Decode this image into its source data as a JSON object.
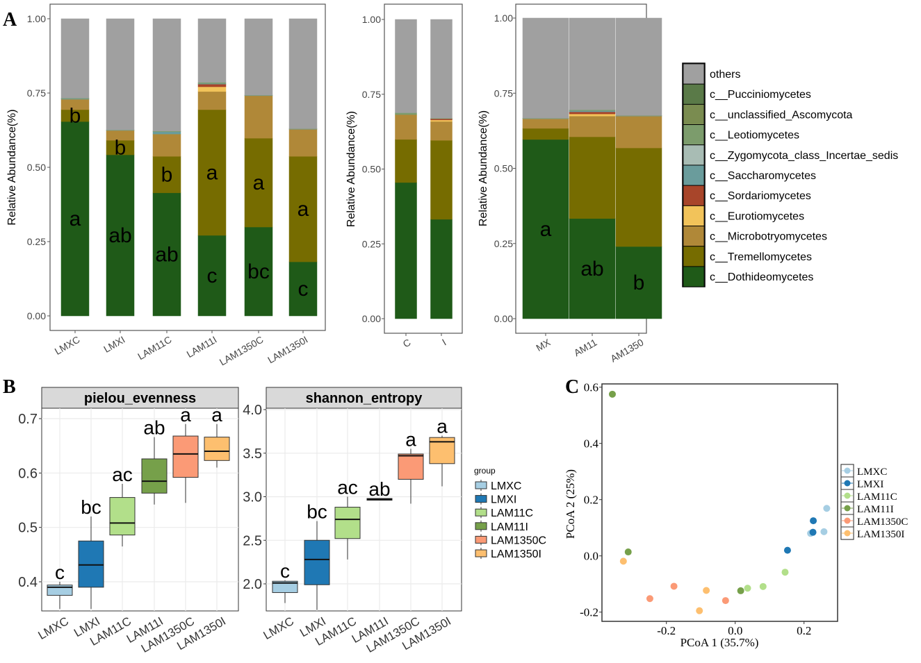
{
  "panel_labels": {
    "a": "A",
    "b": "B",
    "c": "C"
  },
  "colors": {
    "others": "#a0a0a0",
    "c__Pucciniomycetes": "#5a7a48",
    "c__unclassified_Ascomycota": "#7a8c50",
    "c__Leotiomycetes": "#7c9c6c",
    "c__Zygomycota_class_Incertae_sedis": "#a8bcb4",
    "c__Saccharomycetes": "#6a9c9c",
    "c__Sordariomycetes": "#a8452a",
    "c__Eurotiomycetes": "#f2c35a",
    "c__Microbotryomycetes": "#b08838",
    "c__Tremellomycetes": "#766c00",
    "c__Dothideomycetes": "#1f5a18",
    "LMXC": "#a6cee3",
    "LMXI": "#1f78b4",
    "LAM11C": "#b2df8a",
    "LAM11I": "#76a04a",
    "LAM1350C": "#fb9a76",
    "LAM1350I": "#fdbf6f"
  },
  "legend_a": [
    "others",
    "c__Pucciniomycetes",
    "c__unclassified_Ascomycota",
    "c__Leotiomycetes",
    "c__Zygomycota_class_Incertae_sedis",
    "c__Saccharomycetes",
    "c__Sordariomycetes",
    "c__Eurotiomycetes",
    "c__Microbotryomycetes",
    "c__Tremellomycetes",
    "c__Dothideomycetes"
  ],
  "chart_data": [
    {
      "type": "bar",
      "stacked": true,
      "ylabel": "Relative Abundance(%)",
      "ylim": [
        0,
        1
      ],
      "yticks": [
        "0.00",
        "0.25",
        "0.50",
        "0.75",
        "1.00"
      ],
      "categories": [
        "LMXC",
        "LMXI",
        "LAM11C",
        "LAM11I",
        "LAM1350C",
        "LAM1350I"
      ],
      "series": [
        {
          "name": "c__Dothideomycetes",
          "values": [
            0.654,
            0.542,
            0.414,
            0.271,
            0.299,
            0.182
          ]
        },
        {
          "name": "c__Tremellomycetes",
          "values": [
            0.04,
            0.049,
            0.123,
            0.423,
            0.299,
            0.355
          ]
        },
        {
          "name": "c__Microbotryomycetes",
          "values": [
            0.035,
            0.033,
            0.075,
            0.061,
            0.143,
            0.091
          ]
        },
        {
          "name": "c__Eurotiomycetes",
          "values": [
            0,
            0,
            0,
            0.016,
            0,
            0
          ]
        },
        {
          "name": "c__Sordariomycetes",
          "values": [
            0,
            0,
            0,
            0.009,
            0,
            0
          ]
        },
        {
          "name": "c__Saccharomycetes",
          "values": [
            0.002,
            0.001,
            0.008,
            0.002,
            0.001,
            0.001
          ]
        },
        {
          "name": "c__Leotiomycetes",
          "values": [
            0.002,
            0.001,
            0.002,
            0.004,
            0.001,
            0.001
          ]
        },
        {
          "name": "others",
          "values": [
            0.267,
            0.374,
            0.378,
            0.214,
            0.257,
            0.37
          ]
        }
      ],
      "letters": {
        "c__Dothideomycetes": [
          "a",
          "ab",
          "ab",
          "c",
          "bc",
          "c"
        ],
        "c__Tremellomycetes": [
          "b",
          "b",
          "b",
          "a",
          "a",
          "a"
        ]
      }
    },
    {
      "type": "bar",
      "stacked": true,
      "ylabel": "Relative Abundance(%)",
      "ylim": [
        0,
        1
      ],
      "yticks": [
        "0.00",
        "0.25",
        "0.50",
        "0.75",
        "1.00"
      ],
      "categories": [
        "C",
        "I"
      ],
      "series": [
        {
          "name": "c__Dothideomycetes",
          "values": [
            0.455,
            0.332
          ]
        },
        {
          "name": "c__Tremellomycetes",
          "values": [
            0.144,
            0.264
          ]
        },
        {
          "name": "c__Microbotryomycetes",
          "values": [
            0.083,
            0.063
          ]
        },
        {
          "name": "c__Eurotiomycetes",
          "values": [
            0,
            0.005
          ]
        },
        {
          "name": "c__Sordariomycetes",
          "values": [
            0,
            0.004
          ]
        },
        {
          "name": "c__Leotiomycetes",
          "values": [
            0.006,
            0.002
          ]
        },
        {
          "name": "others",
          "values": [
            0.312,
            0.33
          ]
        }
      ]
    },
    {
      "type": "bar",
      "stacked": true,
      "ylabel": "Relative Abundance(%)",
      "ylim": [
        0,
        1
      ],
      "yticks": [
        "0.00",
        "0.25",
        "0.50",
        "0.75",
        "1.00"
      ],
      "categories": [
        "MX",
        "AM11",
        "AM1350"
      ],
      "series": [
        {
          "name": "c__Dothideomycetes",
          "values": [
            0.596,
            0.333,
            0.24
          ]
        },
        {
          "name": "c__Tremellomycetes",
          "values": [
            0.037,
            0.272,
            0.328
          ]
        },
        {
          "name": "c__Microbotryomycetes",
          "values": [
            0.032,
            0.069,
            0.106
          ]
        },
        {
          "name": "c__Eurotiomycetes",
          "values": [
            0,
            0.007,
            0
          ]
        },
        {
          "name": "c__Sordariomycetes",
          "values": [
            0,
            0.007,
            0
          ]
        },
        {
          "name": "c__Saccharomycetes",
          "values": [
            0.001,
            0.004,
            0.001
          ]
        },
        {
          "name": "c__Leotiomycetes",
          "values": [
            0.001,
            0.003,
            0.001
          ]
        },
        {
          "name": "others",
          "values": [
            0.333,
            0.305,
            0.324
          ]
        }
      ],
      "letters": {
        "c__Dothideomycetes": [
          "a",
          "ab",
          "b"
        ]
      }
    },
    {
      "type": "box",
      "title": "pielou_evenness",
      "ylim": [
        0.33,
        0.72
      ],
      "yticks": [
        "0.4",
        "0.5",
        "0.6",
        "0.7"
      ],
      "categories": [
        "LMXC",
        "LMXI",
        "LAM11C",
        "LAM11I",
        "LAM1350C",
        "LAM1350I"
      ],
      "boxes": [
        {
          "min": 0.35,
          "q1": 0.375,
          "median": 0.39,
          "q3": 0.394,
          "max": 0.4
        },
        {
          "min": 0.35,
          "q1": 0.39,
          "median": 0.431,
          "q3": 0.475,
          "max": 0.52
        },
        {
          "min": 0.465,
          "q1": 0.486,
          "median": 0.508,
          "q3": 0.555,
          "max": 0.58
        },
        {
          "min": 0.542,
          "q1": 0.563,
          "median": 0.585,
          "q3": 0.626,
          "max": 0.666
        },
        {
          "min": 0.545,
          "q1": 0.592,
          "median": 0.635,
          "q3": 0.668,
          "max": 0.69
        },
        {
          "min": 0.61,
          "q1": 0.623,
          "median": 0.64,
          "q3": 0.666,
          "max": 0.69
        }
      ],
      "letters": [
        "c",
        "bc",
        "ac",
        "ab",
        "a",
        "a"
      ]
    },
    {
      "type": "box",
      "title": "shannon_entropy",
      "ylim": [
        1.6,
        4.1
      ],
      "yticks": [
        "2.0",
        "2.5",
        "3.0",
        "3.5",
        "4.0"
      ],
      "categories": [
        "LMXC",
        "LMXI",
        "LAM11C",
        "LAM11I",
        "LAM1350C",
        "LAM1350I"
      ],
      "boxes": [
        {
          "min": 1.78,
          "q1": 1.9,
          "median": 2.01,
          "q3": 2.03,
          "max": 2.04
        },
        {
          "min": 1.7,
          "q1": 1.99,
          "median": 2.28,
          "q3": 2.5,
          "max": 2.72
        },
        {
          "min": 2.28,
          "q1": 2.52,
          "median": 2.74,
          "q3": 2.88,
          "max": 3.0
        },
        {
          "min": 2.96,
          "q1": 2.96,
          "median": 2.97,
          "q3": 2.98,
          "max": 2.98
        },
        {
          "min": 2.92,
          "q1": 3.2,
          "median": 3.47,
          "q3": 3.49,
          "max": 3.55
        },
        {
          "min": 3.12,
          "q1": 3.38,
          "median": 3.63,
          "q3": 3.68,
          "max": 3.7
        }
      ],
      "letters": [
        "c",
        "bc",
        "ac",
        "ab",
        "a",
        "a"
      ]
    },
    {
      "type": "scatter",
      "xlabel": "PCoA 1 (35.7%)",
      "ylabel": "PCoA 2 (25%)",
      "xlim": [
        -0.38,
        0.3
      ],
      "ylim": [
        -0.23,
        0.61
      ],
      "xticks": [
        "-0.2",
        "0.0",
        "0.2"
      ],
      "yticks": [
        "-0.2",
        "0.0",
        "0.2",
        "0.4",
        "0.6"
      ],
      "legend_title": "",
      "series": [
        {
          "name": "LMXC",
          "points": [
            [
              0.266,
              0.169
            ],
            [
              0.258,
              0.086
            ],
            [
              0.219,
              0.08
            ]
          ]
        },
        {
          "name": "LMXI",
          "points": [
            [
              0.152,
              0.02
            ],
            [
              0.227,
              0.125
            ],
            [
              0.226,
              0.084
            ]
          ]
        },
        {
          "name": "LAM11C",
          "points": [
            [
              0.036,
              -0.115
            ],
            [
              0.081,
              -0.109
            ],
            [
              0.145,
              -0.058
            ]
          ]
        },
        {
          "name": "LAM11I",
          "points": [
            [
              -0.357,
              0.575
            ],
            [
              -0.311,
              0.014
            ],
            [
              0.016,
              -0.124
            ]
          ]
        },
        {
          "name": "LAM1350C",
          "points": [
            [
              -0.248,
              -0.152
            ],
            [
              -0.178,
              -0.108
            ],
            [
              -0.028,
              -0.159
            ]
          ]
        },
        {
          "name": "LAM1350I",
          "points": [
            [
              -0.325,
              -0.019
            ],
            [
              -0.084,
              -0.123
            ],
            [
              -0.104,
              -0.195
            ]
          ]
        }
      ]
    }
  ],
  "legend_b": {
    "title": "group",
    "items": [
      "LMXC",
      "LMXI",
      "LAM11C",
      "LAM11I",
      "LAM1350C",
      "LAM1350I"
    ]
  }
}
